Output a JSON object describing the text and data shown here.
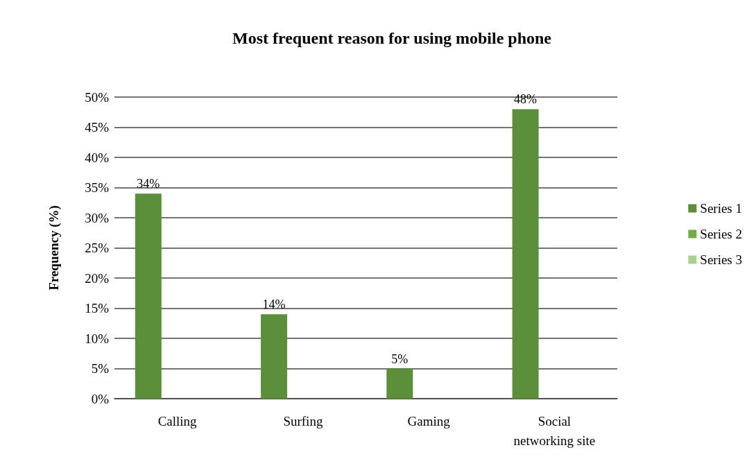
{
  "chart_data": {
    "type": "bar",
    "title": "Most frequent reason for using mobile phone",
    "ylabel": "Frequency (%)",
    "categories": [
      "Calling",
      "Surfing",
      "Gaming",
      "Social\nnetworking site"
    ],
    "series": [
      {
        "name": "Series 1",
        "color": "#5b8f3a",
        "values": [
          34,
          14,
          5,
          48
        ],
        "value_labels": [
          "34%",
          "14%",
          "5%",
          "48%"
        ]
      },
      {
        "name": "Series 2",
        "color": "#70ad47",
        "values": [
          null,
          null,
          null,
          null
        ]
      },
      {
        "name": "Series 3",
        "color": "#a9d18e",
        "values": [
          null,
          null,
          null,
          null
        ]
      }
    ],
    "ylim": [
      0,
      50
    ],
    "yticks": [
      {
        "value": 0,
        "label": "0%"
      },
      {
        "value": 5,
        "label": "5%"
      },
      {
        "value": 10,
        "label": "10%"
      },
      {
        "value": 15,
        "label": "15%"
      },
      {
        "value": 20,
        "label": "20%"
      },
      {
        "value": 25,
        "label": "25%"
      },
      {
        "value": 30,
        "label": "30%"
      },
      {
        "value": 35,
        "label": "35%"
      },
      {
        "value": 40,
        "label": "40%"
      },
      {
        "value": 45,
        "label": "45%"
      },
      {
        "value": 50,
        "label": "50%"
      }
    ],
    "grid": "y",
    "legend": "right"
  }
}
